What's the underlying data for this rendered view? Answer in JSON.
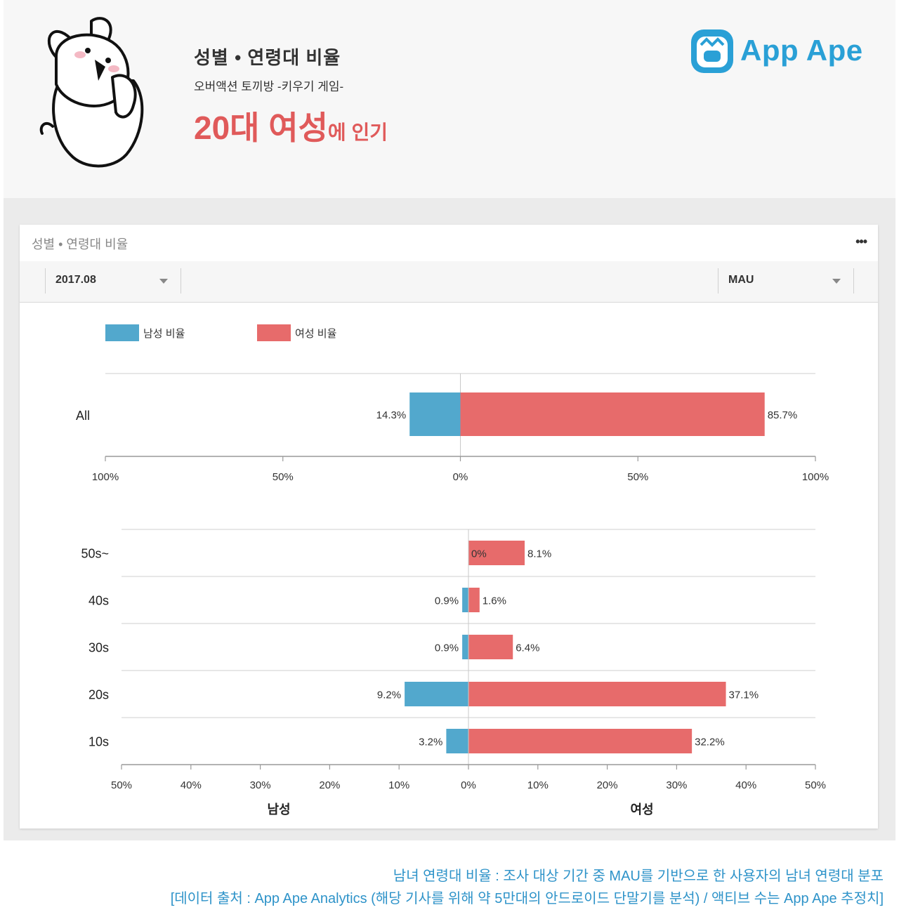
{
  "header": {
    "title": "성별 • 연령대 비율",
    "subtitle": "오버액션 토끼방 -키우기 게임-",
    "highlight_big": "20대 여성",
    "highlight_small": "에 인기",
    "logo_text": "App Ape"
  },
  "card": {
    "title": "성별 • 연령대 비율",
    "more_icon": "•••",
    "period_select": "2017.08",
    "metric_select": "MAU"
  },
  "colors": {
    "male": "#52a8cd",
    "female": "#e76b6b"
  },
  "chart_data": [
    {
      "type": "bar",
      "orientation": "horizontal-diverging",
      "legend": [
        "남성 비율",
        "여성 비율"
      ],
      "categories": [
        "All"
      ],
      "series": [
        {
          "name": "남성 비율",
          "values": [
            14.3
          ]
        },
        {
          "name": "여성 비율",
          "values": [
            85.7
          ]
        }
      ],
      "value_labels": {
        "male": [
          "14.3%"
        ],
        "female": [
          "85.7%"
        ]
      },
      "xlim": [
        -100,
        100
      ],
      "ticks": [
        "100%",
        "50%",
        "0%",
        "50%",
        "100%"
      ]
    },
    {
      "type": "bar",
      "orientation": "horizontal-diverging",
      "categories": [
        "50s~",
        "40s",
        "30s",
        "20s",
        "10s"
      ],
      "series": [
        {
          "name": "남성",
          "values": [
            0,
            0.9,
            0.9,
            9.2,
            3.2
          ]
        },
        {
          "name": "여성",
          "values": [
            8.1,
            1.6,
            6.4,
            37.1,
            32.2
          ]
        }
      ],
      "value_labels": {
        "male": [
          "0%",
          "0.9%",
          "0.9%",
          "9.2%",
          "3.2%"
        ],
        "female": [
          "8.1%",
          "1.6%",
          "6.4%",
          "37.1%",
          "32.2%"
        ]
      },
      "xlim": [
        -50,
        50
      ],
      "ticks": [
        "50%",
        "40%",
        "30%",
        "20%",
        "10%",
        "0%",
        "10%",
        "20%",
        "30%",
        "40%",
        "50%"
      ],
      "xlabel_left": "남성",
      "xlabel_right": "여성"
    }
  ],
  "footer": {
    "line1": "남녀 연령대 비율 : 조사 대상 기간 중 MAU를 기반으로 한 사용자의 남녀 연령대 분포",
    "line2": "[데이터 출처 : App Ape Analytics (해당 기사를 위해 약 5만대의 안드로이드 단말기를 분석) / 액티브 수는 App Ape 추정치]"
  }
}
